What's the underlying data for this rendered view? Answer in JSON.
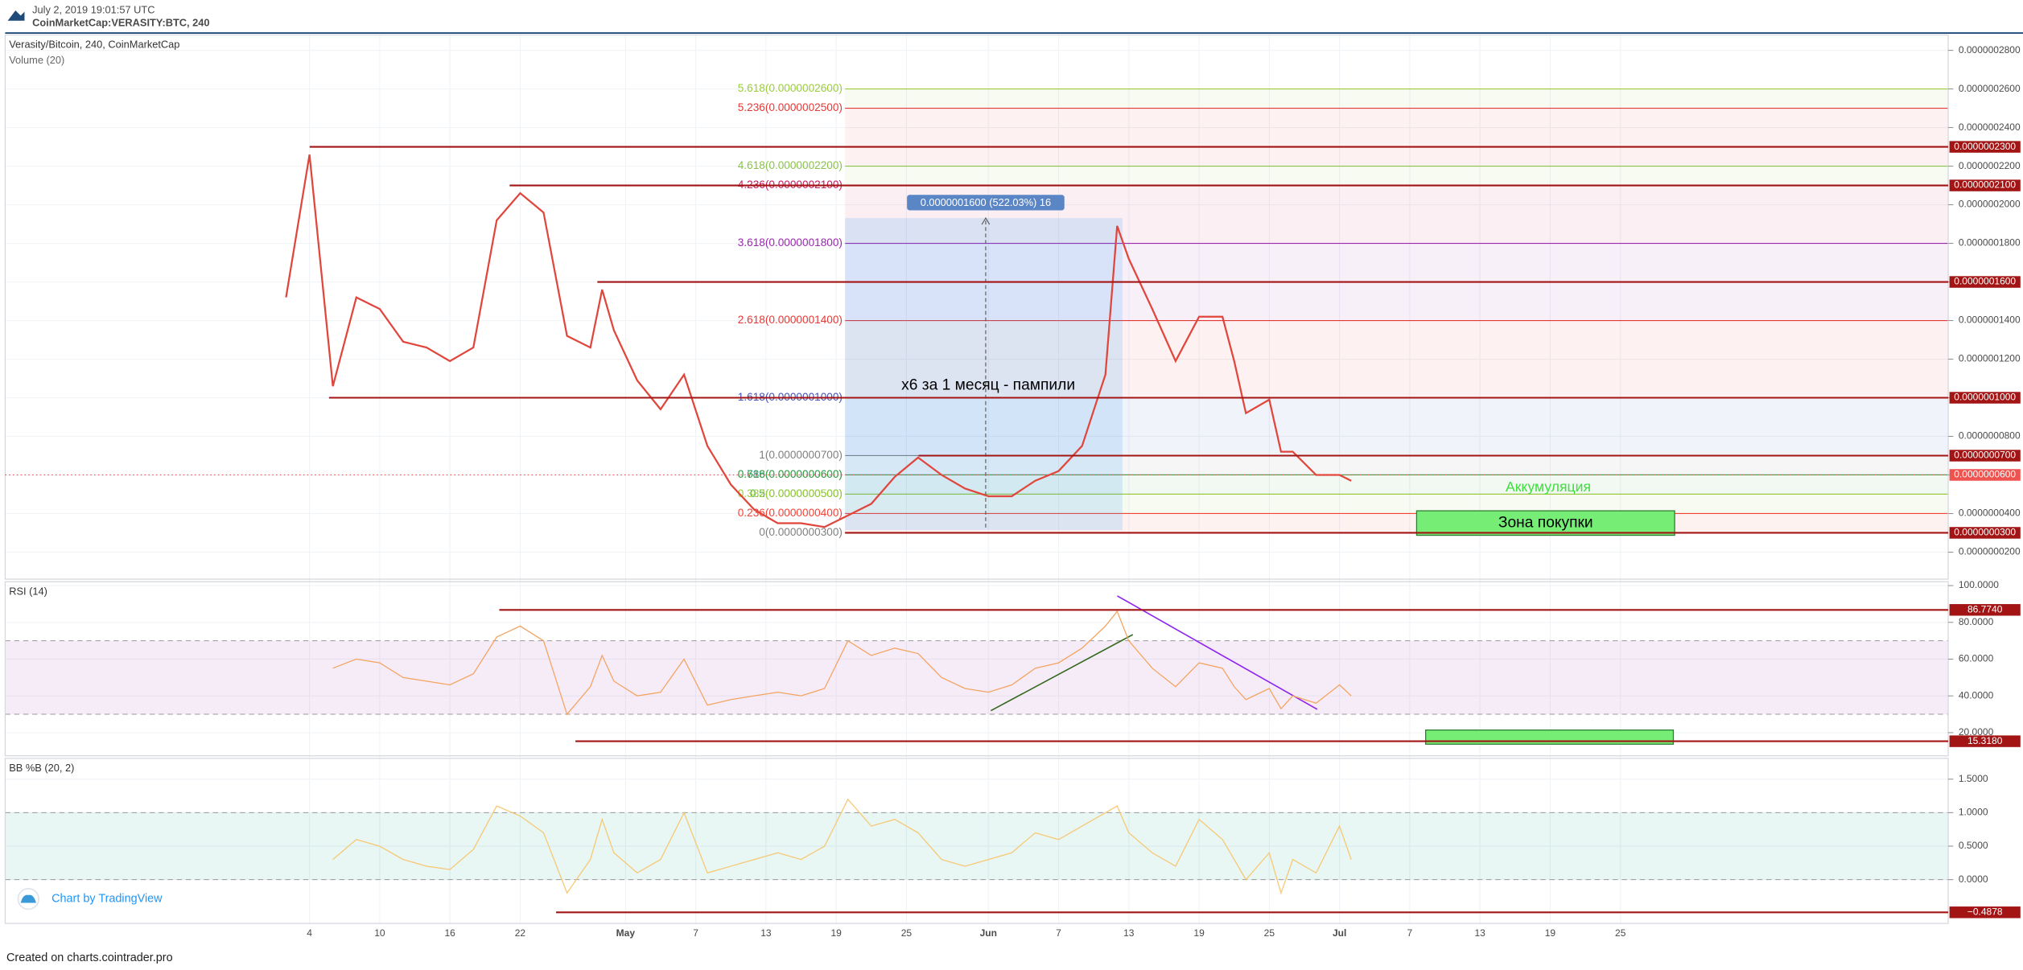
{
  "header": {
    "date": "July 2, 2019 19:01:57 UTC",
    "symbol": "CoinMarketCap:VERASITY:BTC, 240"
  },
  "footer": {
    "attribution": "Chart by TradingView",
    "created": "Created on charts.cointrader.pro"
  },
  "annotations": {
    "pump": "x6 за 1 месяц - пампили",
    "accumulation": "Аккумуляция",
    "buy_zone": "Зона покупки",
    "measure": "0.0000001600 (522.03%) 16"
  },
  "chart_data": [
    {
      "type": "line",
      "title": "Verasity/Bitcoin, 240, CoinMarketCap",
      "subtitle": "Volume (20)",
      "xlim": [
        "2019-03-09",
        "2019-08-22"
      ],
      "x": [
        "2019-04-02",
        "2019-04-04",
        "2019-04-06",
        "2019-04-08",
        "2019-04-10",
        "2019-04-12",
        "2019-04-14",
        "2019-04-16",
        "2019-04-18",
        "2019-04-20",
        "2019-04-22",
        "2019-04-24",
        "2019-04-26",
        "2019-04-28",
        "2019-04-29",
        "2019-04-30",
        "2019-05-02",
        "2019-05-04",
        "2019-05-06",
        "2019-05-08",
        "2019-05-10",
        "2019-05-12",
        "2019-05-14",
        "2019-05-16",
        "2019-05-18",
        "2019-05-20",
        "2019-05-22",
        "2019-05-24",
        "2019-05-26",
        "2019-05-28",
        "2019-05-30",
        "2019-06-01",
        "2019-06-03",
        "2019-06-05",
        "2019-06-07",
        "2019-06-09",
        "2019-06-11",
        "2019-06-12",
        "2019-06-13",
        "2019-06-15",
        "2019-06-17",
        "2019-06-19",
        "2019-06-21",
        "2019-06-22",
        "2019-06-23",
        "2019-06-25",
        "2019-06-26",
        "2019-06-27",
        "2019-06-29",
        "2019-07-01",
        "2019-07-02"
      ],
      "series": [
        {
          "color": "#e0463c",
          "values": [
            1.52e-07,
            2.26e-07,
            1.06e-07,
            1.52e-07,
            1.46e-07,
            1.29e-07,
            1.26e-07,
            1.19e-07,
            1.26e-07,
            1.92e-07,
            2.06e-07,
            1.96e-07,
            1.32e-07,
            1.26e-07,
            1.56e-07,
            1.35e-07,
            1.09e-07,
            9.4e-08,
            1.12e-07,
            7.5e-08,
            5.5e-08,
            4.2e-08,
            3.5e-08,
            3.5e-08,
            3.3e-08,
            3.9e-08,
            4.5e-08,
            5.9e-08,
            6.9e-08,
            6e-08,
            5.3e-08,
            4.9e-08,
            4.9e-08,
            5.7e-08,
            6.2e-08,
            7.5e-08,
            1.12e-07,
            1.89e-07,
            1.72e-07,
            1.46e-07,
            1.19e-07,
            1.42e-07,
            1.42e-07,
            1.19e-07,
            9.2e-08,
            9.9e-08,
            7.2e-08,
            7.2e-08,
            6e-08,
            6e-08,
            5.7e-08
          ]
        }
      ],
      "ylim": [
        6e-09,
        2.88e-07
      ],
      "yticks": [
        {
          "value": 2e-08,
          "label": "0.0000000200"
        },
        {
          "value": 4e-08,
          "label": "0.0000000400"
        },
        {
          "value": 6e-08,
          "label": "0.0000000600"
        },
        {
          "value": 8e-08,
          "label": "0.0000000800"
        },
        {
          "value": 1e-07,
          "label": "0.0000001000"
        },
        {
          "value": 1.2e-07,
          "label": "0.0000001200"
        },
        {
          "value": 1.4e-07,
          "label": "0.0000001400"
        },
        {
          "value": 1.6e-07,
          "label": "0.0000001600"
        },
        {
          "value": 1.8e-07,
          "label": "0.0000001800"
        },
        {
          "value": 2e-07,
          "label": "0.0000002000"
        },
        {
          "value": 2.2e-07,
          "label": "0.0000002200"
        },
        {
          "value": 2.4e-07,
          "label": "0.0000002400"
        },
        {
          "value": 2.6e-07,
          "label": "0.0000002600"
        },
        {
          "value": 2.8e-07,
          "label": "0.0000002800"
        }
      ],
      "levels": [
        {
          "value": 2.3e-07,
          "label": "0.0000002300"
        },
        {
          "value": 2.1e-07,
          "label": "0.0000002100"
        },
        {
          "value": 1.6e-07,
          "label": "0.0000001600"
        },
        {
          "value": 1e-07,
          "label": "0.0000001000"
        },
        {
          "value": 7e-08,
          "label": "0.0000000700"
        },
        {
          "value": 6e-08,
          "label": "0.0000000600",
          "color": "#ef5350"
        },
        {
          "value": 3e-08,
          "label": "0.0000000300"
        }
      ],
      "fib": [
        {
          "level": 5.618,
          "price": 2.6e-07,
          "label": "5.618(0.0000002600)",
          "color": "#9ccc3c"
        },
        {
          "level": 5.236,
          "price": 2.5e-07,
          "label": "5.236(0.0000002500)",
          "color": "#e53935"
        },
        {
          "level": 4.618,
          "price": 2.2e-07,
          "label": "4.618(0.0000002200)",
          "color": "#8bc34a"
        },
        {
          "level": 4.236,
          "price": 2.1e-07,
          "label": "4.236(0.0000002100)",
          "color": "#c2185b"
        },
        {
          "level": 3.618,
          "price": 1.8e-07,
          "label": "3.618(0.0000001800)",
          "color": "#9c27b0"
        },
        {
          "level": 2.618,
          "price": 1.4e-07,
          "label": "2.618(0.0000001400)",
          "color": "#e53935"
        },
        {
          "level": 1.618,
          "price": 1e-07,
          "label": "1.618(0.0000001000)",
          "color": "#3f51b5"
        },
        {
          "level": 1,
          "price": 7e-08,
          "label": "1(0.0000000700)",
          "color": "#808080"
        },
        {
          "level": 0.786,
          "price": 6e-08,
          "label": "0.786(0.0000000600)",
          "color": "#26a69a"
        },
        {
          "level": 0.618,
          "price": 6e-08,
          "label": "0.618(0.0000000600)",
          "color": "#43a047"
        },
        {
          "level": 0.5,
          "price": 5e-08,
          "label": "0.5(0.0000000500)",
          "color": "#4caf50"
        },
        {
          "level": 0.382,
          "price": 5e-08,
          "label": "0.382(0.0000000500)",
          "color": "#9ccc3c"
        },
        {
          "level": 0.236,
          "price": 4e-08,
          "label": "0.236(0.0000000400)",
          "color": "#f44336"
        },
        {
          "level": 0,
          "price": 3e-08,
          "label": "0(0.0000000300)",
          "color": "#808080"
        }
      ]
    },
    {
      "type": "line",
      "title": "RSI (14)",
      "xlim": [
        "2019-03-09",
        "2019-08-22"
      ],
      "x": [
        "2019-04-02",
        "2019-04-04",
        "2019-04-06",
        "2019-04-08",
        "2019-04-10",
        "2019-04-12",
        "2019-04-14",
        "2019-04-16",
        "2019-04-18",
        "2019-04-20",
        "2019-04-22",
        "2019-04-24",
        "2019-04-26",
        "2019-04-28",
        "2019-04-29",
        "2019-04-30",
        "2019-05-02",
        "2019-05-04",
        "2019-05-06",
        "2019-05-08",
        "2019-05-10",
        "2019-05-12",
        "2019-05-14",
        "2019-05-16",
        "2019-05-18",
        "2019-05-20",
        "2019-05-22",
        "2019-05-24",
        "2019-05-26",
        "2019-05-28",
        "2019-05-30",
        "2019-06-01",
        "2019-06-03",
        "2019-06-05",
        "2019-06-07",
        "2019-06-09",
        "2019-06-11",
        "2019-06-12",
        "2019-06-13",
        "2019-06-15",
        "2019-06-17",
        "2019-06-19",
        "2019-06-21",
        "2019-06-22",
        "2019-06-23",
        "2019-06-25",
        "2019-06-26",
        "2019-06-27",
        "2019-06-29",
        "2019-07-01",
        "2019-07-02"
      ],
      "series": [
        {
          "color": "#f4a460",
          "values": [
            null,
            null,
            55,
            60,
            58,
            50,
            48,
            46,
            52,
            72,
            78,
            70,
            30,
            45,
            62,
            48,
            40,
            42,
            60,
            35,
            38,
            40,
            42,
            40,
            44,
            70,
            62,
            66,
            63,
            50,
            44,
            42,
            46,
            55,
            58,
            66,
            78,
            86,
            70,
            55,
            45,
            58,
            55,
            45,
            38,
            44,
            33,
            40,
            36,
            46,
            40
          ]
        }
      ],
      "ylim": [
        7.4,
        102.1
      ],
      "yticks": [
        {
          "value": 20,
          "label": "20.0000"
        },
        {
          "value": 40,
          "label": "40.0000"
        },
        {
          "value": 60,
          "label": "60.0000"
        },
        {
          "value": 80,
          "label": "80.0000"
        },
        {
          "value": 100,
          "label": "100.0000"
        }
      ],
      "band": [
        30,
        70
      ],
      "band_color": "#9c27b0",
      "levels": [
        {
          "value": 86.774,
          "label": "86.7740"
        },
        {
          "value": 15.318,
          "label": "15.3180"
        }
      ]
    },
    {
      "type": "line",
      "title": "BB %B (20, 2)",
      "xlim": [
        "2019-03-09",
        "2019-08-22"
      ],
      "x": [
        "2019-04-02",
        "2019-04-04",
        "2019-04-06",
        "2019-04-08",
        "2019-04-10",
        "2019-04-12",
        "2019-04-14",
        "2019-04-16",
        "2019-04-18",
        "2019-04-20",
        "2019-04-22",
        "2019-04-24",
        "2019-04-26",
        "2019-04-28",
        "2019-04-29",
        "2019-04-30",
        "2019-05-02",
        "2019-05-04",
        "2019-05-06",
        "2019-05-08",
        "2019-05-10",
        "2019-05-12",
        "2019-05-14",
        "2019-05-16",
        "2019-05-18",
        "2019-05-20",
        "2019-05-22",
        "2019-05-24",
        "2019-05-26",
        "2019-05-28",
        "2019-05-30",
        "2019-06-01",
        "2019-06-03",
        "2019-06-05",
        "2019-06-07",
        "2019-06-09",
        "2019-06-11",
        "2019-06-12",
        "2019-06-13",
        "2019-06-15",
        "2019-06-17",
        "2019-06-19",
        "2019-06-21",
        "2019-06-22",
        "2019-06-23",
        "2019-06-25",
        "2019-06-26",
        "2019-06-27",
        "2019-06-29",
        "2019-07-01",
        "2019-07-02"
      ],
      "series": [
        {
          "color": "#f7c873",
          "values": [
            null,
            null,
            0.3,
            0.6,
            0.5,
            0.3,
            0.2,
            0.15,
            0.45,
            1.1,
            0.95,
            0.7,
            -0.2,
            0.3,
            0.9,
            0.4,
            0.1,
            0.3,
            1.0,
            0.1,
            0.2,
            0.3,
            0.4,
            0.3,
            0.5,
            1.2,
            0.8,
            0.9,
            0.7,
            0.3,
            0.2,
            0.3,
            0.4,
            0.7,
            0.6,
            0.8,
            1.0,
            1.1,
            0.7,
            0.4,
            0.2,
            0.9,
            0.6,
            0.3,
            0.0,
            0.4,
            -0.2,
            0.3,
            0.1,
            0.8,
            0.3
          ]
        }
      ],
      "ylim": [
        -0.654,
        1.81
      ],
      "yticks": [
        {
          "value": 0,
          "label": "0.0000"
        },
        {
          "value": 0.5,
          "label": "0.5000"
        },
        {
          "value": 1,
          "label": "1.0000"
        },
        {
          "value": 1.5,
          "label": "1.5000"
        }
      ],
      "band": [
        0,
        1
      ],
      "band_color": "#009688",
      "levels": [
        {
          "value": -0.4878,
          "label": "−0.4878"
        }
      ],
      "xticks": [
        {
          "value": "2019-04-04",
          "label": "4"
        },
        {
          "value": "2019-04-10",
          "label": "10"
        },
        {
          "value": "2019-04-16",
          "label": "16"
        },
        {
          "value": "2019-04-22",
          "label": "22"
        },
        {
          "value": "2019-05-01",
          "label": "May"
        },
        {
          "value": "2019-05-07",
          "label": "7"
        },
        {
          "value": "2019-05-13",
          "label": "13"
        },
        {
          "value": "2019-05-19",
          "label": "19"
        },
        {
          "value": "2019-05-25",
          "label": "25"
        },
        {
          "value": "2019-06-01",
          "label": "Jun"
        },
        {
          "value": "2019-06-07",
          "label": "7"
        },
        {
          "value": "2019-06-13",
          "label": "13"
        },
        {
          "value": "2019-06-19",
          "label": "19"
        },
        {
          "value": "2019-06-25",
          "label": "25"
        },
        {
          "value": "2019-07-01",
          "label": "Jul"
        },
        {
          "value": "2019-07-07",
          "label": "7"
        },
        {
          "value": "2019-07-13",
          "label": "13"
        },
        {
          "value": "2019-07-19",
          "label": "19"
        },
        {
          "value": "2019-07-25",
          "label": "25"
        }
      ]
    }
  ]
}
